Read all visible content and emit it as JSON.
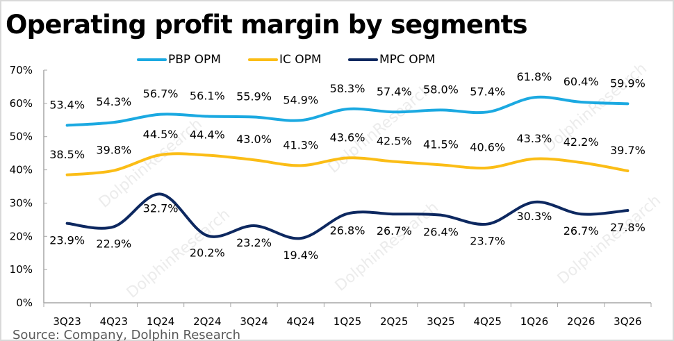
{
  "chart_data": {
    "type": "line",
    "title": "Operating profit margin by segments",
    "xlabel": "",
    "ylabel": "",
    "categories": [
      "3Q23",
      "4Q23",
      "1Q24",
      "2Q24",
      "3Q24",
      "4Q24",
      "1Q25",
      "2Q25",
      "3Q25",
      "4Q25",
      "1Q26",
      "2Q26",
      "3Q26"
    ],
    "ylim": [
      0,
      70
    ],
    "yticks": [
      "0%",
      "10%",
      "20%",
      "30%",
      "40%",
      "50%",
      "60%",
      "70%"
    ],
    "grid": false,
    "legend_position": "top-center",
    "smooth": true,
    "series": [
      {
        "name": "PBP OPM",
        "color": "#1ba9e1",
        "values": [
          53.4,
          54.3,
          56.7,
          56.1,
          55.9,
          54.9,
          58.3,
          57.4,
          58.0,
          57.4,
          61.8,
          60.4,
          59.9
        ],
        "labels": [
          "53.4%",
          "54.3%",
          "56.7%",
          "56.1%",
          "55.9%",
          "54.9%",
          "58.3%",
          "57.4%",
          "58.0%",
          "57.4%",
          "61.8%",
          "60.4%",
          "59.9%"
        ]
      },
      {
        "name": "IC OPM",
        "color": "#fbbd16",
        "values": [
          38.5,
          39.8,
          44.5,
          44.4,
          43.0,
          41.3,
          43.6,
          42.5,
          41.5,
          40.6,
          43.3,
          42.2,
          39.7
        ],
        "labels": [
          "38.5%",
          "39.8%",
          "44.5%",
          "44.4%",
          "43.0%",
          "41.3%",
          "43.6%",
          "42.5%",
          "41.5%",
          "40.6%",
          "43.3%",
          "42.2%",
          "39.7%"
        ]
      },
      {
        "name": "MPC OPM",
        "color": "#0d2860",
        "values": [
          23.9,
          22.9,
          32.7,
          20.2,
          23.2,
          19.4,
          26.8,
          26.7,
          26.4,
          23.7,
          30.3,
          26.7,
          27.8
        ],
        "labels": [
          "23.9%",
          "22.9%",
          "32.7%",
          "20.2%",
          "23.2%",
          "19.4%",
          "26.8%",
          "26.7%",
          "26.4%",
          "23.7%",
          "30.3%",
          "26.7%",
          "27.8%"
        ]
      }
    ]
  },
  "source_text": "Source:  Company, Dolphin Research",
  "watermark_text": "DolphinResearch"
}
